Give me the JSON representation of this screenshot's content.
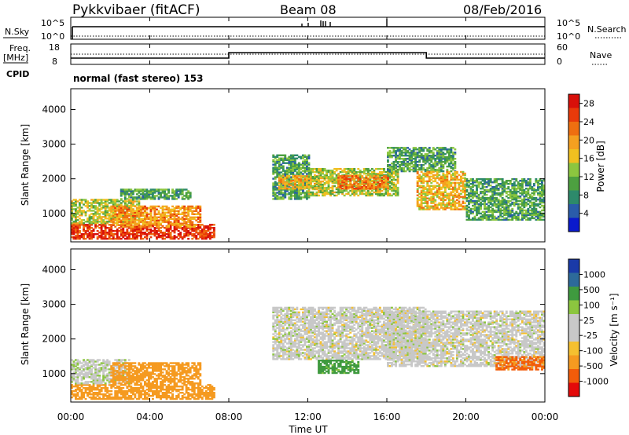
{
  "header": {
    "station": "Pykkvibaer (fitACF)",
    "beam": "Beam 08",
    "date": "08/Feb/2016"
  },
  "aux_panels": {
    "nsky_label": "N.Sky",
    "nsky_ticks": [
      "10^5",
      "10^0"
    ],
    "nsearch_label": "N.Search",
    "nsearch_ticks": [
      "10^5",
      "10^0"
    ],
    "freq_label_1": "Freq.",
    "freq_label_2": "[MHz]",
    "freq_ticks": [
      "18",
      "8"
    ],
    "nave_label": "Nave",
    "nave_ticks": [
      "60",
      "0"
    ],
    "cpid_label": "CPID",
    "cpid_text": "normal (fast stereo) 153"
  },
  "colors": {
    "power_scale": [
      "#0a1acc",
      "#2a5caa",
      "#2d8a6b",
      "#4da040",
      "#8cc63f",
      "#f0c020",
      "#f5a020",
      "#ef6f10",
      "#e83a0a",
      "#d8100a"
    ],
    "velocity_scale": [
      "#e40a0a",
      "#f25c0a",
      "#f59a20",
      "#f5c030",
      "#c8c8c8",
      "#c8c8c8",
      "#8cc63f",
      "#3f9a3f",
      "#2d6a9a",
      "#1a3aa8"
    ]
  },
  "chart_data": [
    {
      "type": "heatmap",
      "name": "Power",
      "ylabel": "Slant Range [km]",
      "yticks": [
        1000,
        2000,
        3000,
        4000
      ],
      "ylim": [
        180,
        4600
      ],
      "xlim": [
        0,
        24
      ],
      "xticks": [
        "00:00",
        "04:00",
        "08:00",
        "12:00",
        "16:00",
        "20:00",
        "00:00"
      ],
      "colorbar": {
        "label": "Power [dB]",
        "ticks": [
          "4",
          "8",
          "12",
          "16",
          "20",
          "24",
          "28"
        ],
        "range": [
          0,
          30
        ]
      },
      "regions": [
        {
          "t0": 0.0,
          "t1": 7.2,
          "r0": 250,
          "r1": 700,
          "v": 26
        },
        {
          "t0": 0.0,
          "t1": 3.5,
          "r0": 700,
          "r1": 1400,
          "v": 14
        },
        {
          "t0": 2.0,
          "t1": 6.5,
          "r0": 600,
          "r1": 1200,
          "v": 20
        },
        {
          "t0": 2.5,
          "t1": 6.0,
          "r0": 1400,
          "r1": 1700,
          "v": 10
        },
        {
          "t0": 10.2,
          "t1": 12.0,
          "r0": 1400,
          "r1": 2700,
          "v": 10
        },
        {
          "t0": 10.5,
          "t1": 12.5,
          "r0": 1700,
          "r1": 2100,
          "v": 18
        },
        {
          "t0": 12.0,
          "t1": 16.5,
          "r0": 1500,
          "r1": 2300,
          "v": 14
        },
        {
          "t0": 13.5,
          "t1": 16.0,
          "r0": 1700,
          "r1": 2100,
          "v": 22
        },
        {
          "t0": 16.0,
          "t1": 19.5,
          "r0": 2200,
          "r1": 2900,
          "v": 10
        },
        {
          "t0": 17.5,
          "t1": 20.0,
          "r0": 1100,
          "r1": 2200,
          "v": 18
        },
        {
          "t0": 20.0,
          "t1": 24.0,
          "r0": 800,
          "r1": 2000,
          "v": 10
        }
      ]
    },
    {
      "type": "heatmap",
      "name": "Velocity",
      "ylabel": "Slant Range [km]",
      "yticks": [
        1000,
        2000,
        3000,
        4000
      ],
      "ylim": [
        180,
        4600
      ],
      "xlim": [
        0,
        24
      ],
      "xticks": [
        "00:00",
        "04:00",
        "08:00",
        "12:00",
        "16:00",
        "20:00",
        "00:00"
      ],
      "xlabel": "Time UT",
      "colorbar": {
        "label": "Velocity [m s⁻¹]",
        "ticks": [
          "1000",
          "500",
          "100",
          "25",
          "-25",
          "-100",
          "-500",
          "-1000"
        ],
        "range": [
          -1000,
          1000
        ]
      },
      "regions": [
        {
          "t0": 0.0,
          "t1": 7.2,
          "r0": 250,
          "r1": 700,
          "v": -300
        },
        {
          "t0": 0.0,
          "t1": 3.0,
          "r0": 700,
          "r1": 1400,
          "v": 10
        },
        {
          "t0": 2.0,
          "t1": 6.5,
          "r0": 700,
          "r1": 1300,
          "v": -200
        },
        {
          "t0": 10.2,
          "t1": 18.0,
          "r0": 1400,
          "r1": 2900,
          "v": 0
        },
        {
          "t0": 16.0,
          "t1": 24.0,
          "r0": 1200,
          "r1": 2800,
          "v": 0
        },
        {
          "t0": 12.5,
          "t1": 14.5,
          "r0": 1000,
          "r1": 1400,
          "v": 150
        },
        {
          "t0": 21.5,
          "t1": 24.0,
          "r0": 1100,
          "r1": 1500,
          "v": -600
        }
      ]
    }
  ]
}
